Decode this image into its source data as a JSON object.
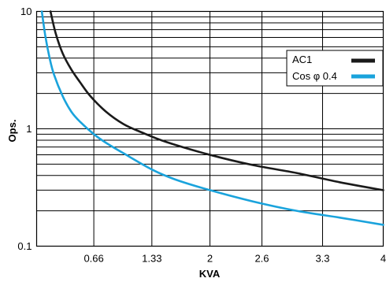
{
  "chart_data": {
    "type": "line",
    "xlabel": "KVA",
    "ylabel": "Ops.",
    "y_scale": "log",
    "ylim": [
      0.1,
      10
    ],
    "xlim": [
      0,
      4
    ],
    "x_ticks": [
      0.66,
      1.33,
      2,
      2.6,
      3.3,
      4
    ],
    "x_tick_labels": [
      "0.66",
      "1.33",
      "2",
      "2.6",
      "3.3",
      "4"
    ],
    "y_ticks": [
      0.1,
      1,
      10
    ],
    "y_tick_labels": [
      "0.1",
      "1",
      "10"
    ],
    "grid": true,
    "legend": "top-right",
    "series": [
      {
        "name": "AC1",
        "color": "#1a1a1a",
        "x": [
          0.16,
          0.22,
          0.3,
          0.4,
          0.5,
          0.62,
          0.8,
          1.0,
          1.2,
          1.5,
          2.0,
          2.5,
          3.0,
          3.5,
          4.0
        ],
        "y": [
          10,
          6.5,
          4.4,
          3.2,
          2.5,
          1.9,
          1.4,
          1.1,
          0.94,
          0.77,
          0.6,
          0.49,
          0.42,
          0.35,
          0.3
        ]
      },
      {
        "name": "Cos φ 0.4",
        "color": "#1aa3dc",
        "x": [
          0.06,
          0.1,
          0.15,
          0.2,
          0.3,
          0.4,
          0.5,
          0.66,
          0.8,
          1.0,
          1.33,
          1.6,
          2.0,
          2.5,
          3.0,
          3.5,
          4.0
        ],
        "y": [
          10,
          6.2,
          4.0,
          2.9,
          1.9,
          1.4,
          1.15,
          0.9,
          0.76,
          0.62,
          0.45,
          0.37,
          0.3,
          0.24,
          0.2,
          0.175,
          0.152
        ]
      }
    ]
  }
}
